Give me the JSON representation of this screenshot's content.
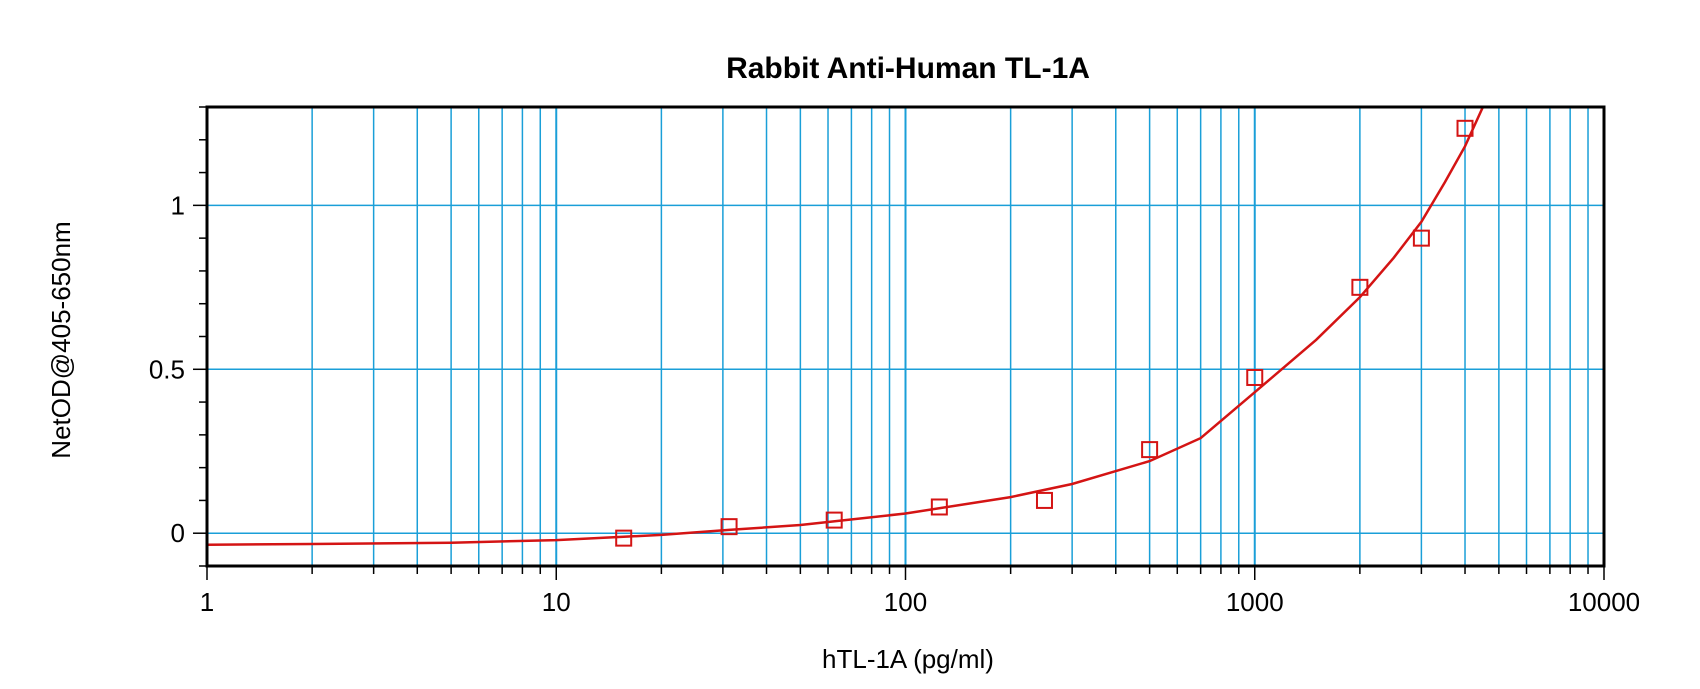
{
  "chart_data": {
    "type": "scatter",
    "title": "Rabbit Anti-Human TL-1A",
    "xlabel": "hTL-1A (pg/ml)",
    "ylabel": "NetOD@405-650nm",
    "x_scale": "log",
    "xlim": [
      1,
      10000
    ],
    "ylim": [
      -0.1,
      1.3
    ],
    "x_ticks": [
      {
        "value": 1,
        "label": "1"
      },
      {
        "value": 10,
        "label": "10"
      },
      {
        "value": 100,
        "label": "100"
      },
      {
        "value": 1000,
        "label": "1000"
      },
      {
        "value": 10000,
        "label": "10000"
      }
    ],
    "y_ticks": [
      {
        "value": 0,
        "label": "0"
      },
      {
        "value": 0.5,
        "label": "0.5"
      },
      {
        "value": 1,
        "label": "1"
      }
    ],
    "grid": true,
    "colors": {
      "grid": "#1a9fd8",
      "series": "#d41414",
      "frame": "#000000"
    },
    "series": [
      {
        "kind": "points",
        "marker": "square",
        "x": [
          15.6,
          31.25,
          62.5,
          125,
          250,
          500,
          1000,
          2000,
          3000,
          4000
        ],
        "y": [
          -0.015,
          0.02,
          0.04,
          0.08,
          0.1,
          0.255,
          0.475,
          0.75,
          0.9,
          1.235
        ]
      },
      {
        "kind": "fit-curve",
        "x": [
          1,
          2,
          5,
          10,
          20,
          31.25,
          50,
          100,
          200,
          300,
          500,
          700,
          1000,
          1500,
          2000,
          2500,
          3000,
          3500,
          4000,
          4500
        ],
        "y": [
          -0.035,
          -0.033,
          -0.029,
          -0.021,
          -0.005,
          0.01,
          0.025,
          0.06,
          0.11,
          0.15,
          0.22,
          0.29,
          0.43,
          0.59,
          0.72,
          0.84,
          0.95,
          1.07,
          1.18,
          1.3
        ]
      }
    ]
  }
}
